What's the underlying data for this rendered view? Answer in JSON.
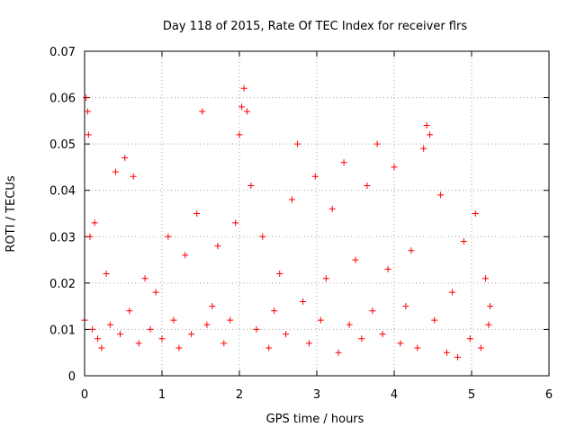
{
  "chart_data": {
    "type": "scatter",
    "title": "Day 118 of 2015, Rate Of TEC Index for receiver flrs",
    "xlabel": "GPS time / hours",
    "ylabel": "ROTI / TECUs",
    "xlim": [
      0,
      6
    ],
    "ylim": [
      0,
      0.07
    ],
    "xticks": [
      0,
      1,
      2,
      3,
      4,
      5,
      6
    ],
    "yticks": [
      0,
      0.01,
      0.02,
      0.03,
      0.04,
      0.05,
      0.06,
      0.07
    ],
    "xtick_labels": [
      "0",
      "1",
      "2",
      "3",
      "4",
      "5",
      "6"
    ],
    "ytick_labels": [
      "0",
      "0.01",
      "0.02",
      "0.03",
      "0.04",
      "0.05",
      "0.06",
      "0.07"
    ],
    "grid": true,
    "marker": "plus",
    "color": "#ff0000",
    "series": [
      {
        "name": "ROTI",
        "x": [
          0.0,
          0.02,
          0.04,
          0.05,
          0.07,
          0.1,
          0.13,
          0.17,
          0.22,
          0.28,
          0.33,
          0.4,
          0.46,
          0.52,
          0.58,
          0.63,
          0.7,
          0.78,
          0.85,
          0.92,
          1.0,
          1.08,
          1.15,
          1.22,
          1.3,
          1.38,
          1.45,
          1.52,
          1.58,
          1.65,
          1.72,
          1.8,
          1.88,
          1.95,
          2.0,
          2.03,
          2.06,
          2.1,
          2.15,
          2.22,
          2.3,
          2.38,
          2.45,
          2.52,
          2.6,
          2.68,
          2.75,
          2.82,
          2.9,
          2.98,
          3.05,
          3.12,
          3.2,
          3.28,
          3.35,
          3.42,
          3.5,
          3.58,
          3.65,
          3.72,
          3.78,
          3.85,
          3.92,
          4.0,
          4.08,
          4.15,
          4.22,
          4.3,
          4.38,
          4.42,
          4.46,
          4.52,
          4.6,
          4.68,
          4.75,
          4.82,
          4.9,
          4.98,
          5.05,
          5.12,
          5.18,
          5.22,
          5.24
        ],
        "y": [
          0.012,
          0.06,
          0.057,
          0.052,
          0.03,
          0.01,
          0.033,
          0.008,
          0.006,
          0.022,
          0.011,
          0.044,
          0.009,
          0.047,
          0.014,
          0.043,
          0.007,
          0.021,
          0.01,
          0.018,
          0.008,
          0.03,
          0.012,
          0.006,
          0.026,
          0.009,
          0.035,
          0.057,
          0.011,
          0.015,
          0.028,
          0.007,
          0.012,
          0.033,
          0.052,
          0.058,
          0.062,
          0.057,
          0.041,
          0.01,
          0.03,
          0.006,
          0.014,
          0.022,
          0.009,
          0.038,
          0.05,
          0.016,
          0.007,
          0.043,
          0.012,
          0.021,
          0.036,
          0.005,
          0.046,
          0.011,
          0.025,
          0.008,
          0.041,
          0.014,
          0.05,
          0.009,
          0.023,
          0.045,
          0.007,
          0.015,
          0.027,
          0.006,
          0.049,
          0.054,
          0.052,
          0.012,
          0.039,
          0.005,
          0.018,
          0.004,
          0.029,
          0.008,
          0.035,
          0.006,
          0.021,
          0.011,
          0.015
        ]
      }
    ]
  }
}
